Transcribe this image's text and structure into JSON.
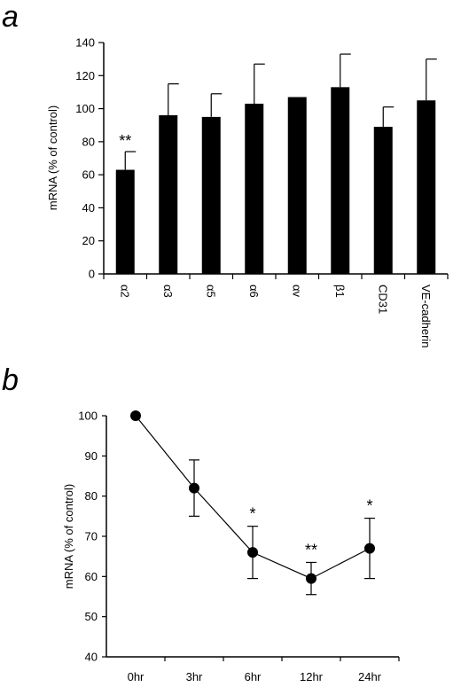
{
  "chart_data": [
    {
      "panel": "a",
      "type": "bar",
      "ylabel": "mRNA (% of control)",
      "ylim": [
        0,
        140
      ],
      "yticks": [
        "0",
        "20",
        "40",
        "60",
        "80",
        "100",
        "120",
        "140"
      ],
      "categories": [
        "α2",
        "α3",
        "α5",
        "α6",
        "αv",
        "β1",
        "CD31",
        "VE-cadherin"
      ],
      "values": [
        63,
        96,
        95,
        103,
        107,
        113,
        89,
        105
      ],
      "errors": [
        11,
        19,
        14,
        24,
        0,
        20,
        12,
        25
      ],
      "annotations": [
        "**",
        "",
        "",
        "",
        "",
        "",
        "",
        ""
      ],
      "bar_color": "#000000",
      "grid": false
    },
    {
      "panel": "b",
      "type": "line",
      "ylabel": "mRNA (% of control)",
      "ylim": [
        40,
        100
      ],
      "yticks": [
        "40",
        "50",
        "60",
        "70",
        "80",
        "90",
        "100"
      ],
      "categories": [
        "0hr",
        "3hr",
        "6hr",
        "12hr",
        "24hr"
      ],
      "values": [
        100,
        82,
        66,
        59.5,
        67
      ],
      "errors": [
        0,
        7,
        6.5,
        4,
        7.5
      ],
      "annotations": [
        "",
        "",
        "*",
        "**",
        "*"
      ],
      "marker": "circle",
      "line_color": "#000000",
      "grid": false
    }
  ]
}
